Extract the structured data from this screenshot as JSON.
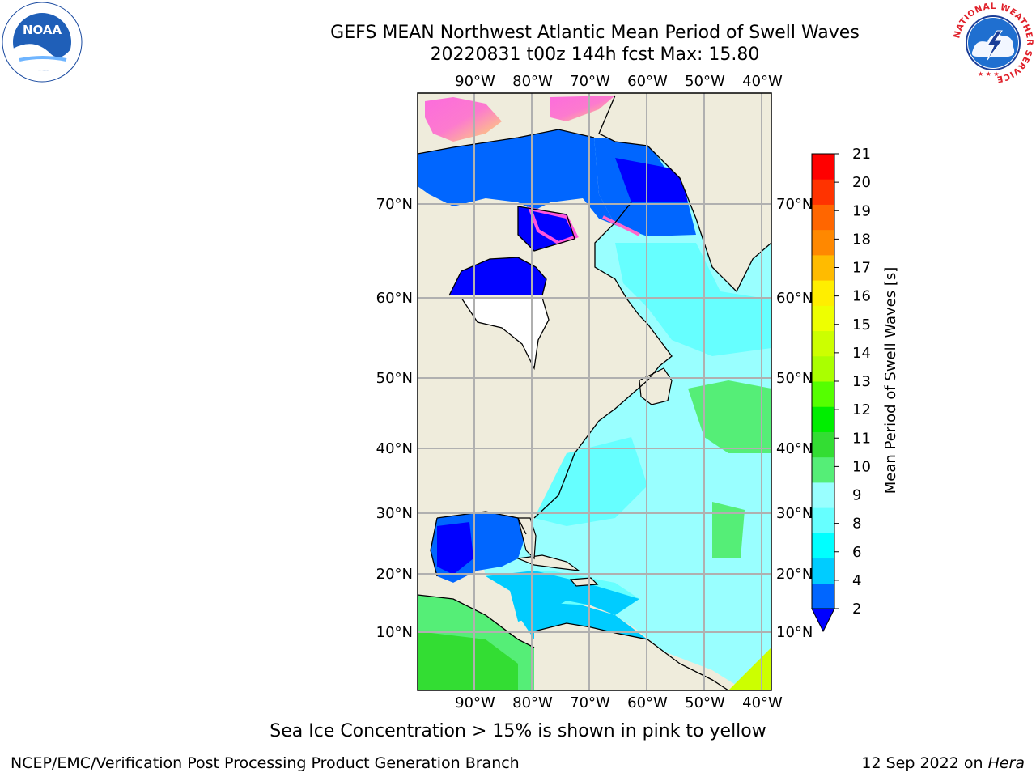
{
  "title": {
    "line1": "GEFS MEAN Northwest Atlantic Mean Period of Swell Waves",
    "line2": "20220831 t00z 144h fcst   Max: 15.80"
  },
  "logos": {
    "left": {
      "icon": "noaa-logo-icon",
      "text": "NOAA"
    },
    "right": {
      "icon": "nws-logo-icon",
      "ring_text": "NATIONAL WEATHER SERVICE"
    }
  },
  "map": {
    "longitude_labels": [
      "90°W",
      "80°W",
      "70°W",
      "60°W",
      "50°W",
      "40°W"
    ],
    "latitude_labels": [
      "70°N",
      "60°N",
      "50°N",
      "40°N",
      "30°N",
      "20°N",
      "10°N"
    ],
    "colors": {
      "land": "#efecdc",
      "no_data": "#ffffff",
      "grid": "#b0b0b0",
      "coast": "#000000"
    }
  },
  "colorbar": {
    "label": "Mean Period of Swell Waves [s]",
    "ticks": [
      "2",
      "4",
      "6",
      "8",
      "9",
      "10",
      "11",
      "12",
      "13",
      "14",
      "15",
      "16",
      "17",
      "18",
      "19",
      "20",
      "21"
    ],
    "under_color": "#0000ff",
    "bin_colors": [
      "#0066ff",
      "#00ccff",
      "#00ffff",
      "#66ffff",
      "#99ffff",
      "#55ee77",
      "#33dd33",
      "#00ee00",
      "#55ff00",
      "#aaff00",
      "#ccff00",
      "#eeff00",
      "#ffee00",
      "#ffbb00",
      "#ff8800",
      "#ff6600",
      "#ff3300",
      "#ff0000"
    ]
  },
  "footer": {
    "ice_note": "Sea Ice Concentration > 15% is shown in pink to yellow",
    "credit": "NCEP/EMC/Verification Post Processing Product Generation Branch",
    "date": "12 Sep 2022 on",
    "host": "Hera"
  }
}
